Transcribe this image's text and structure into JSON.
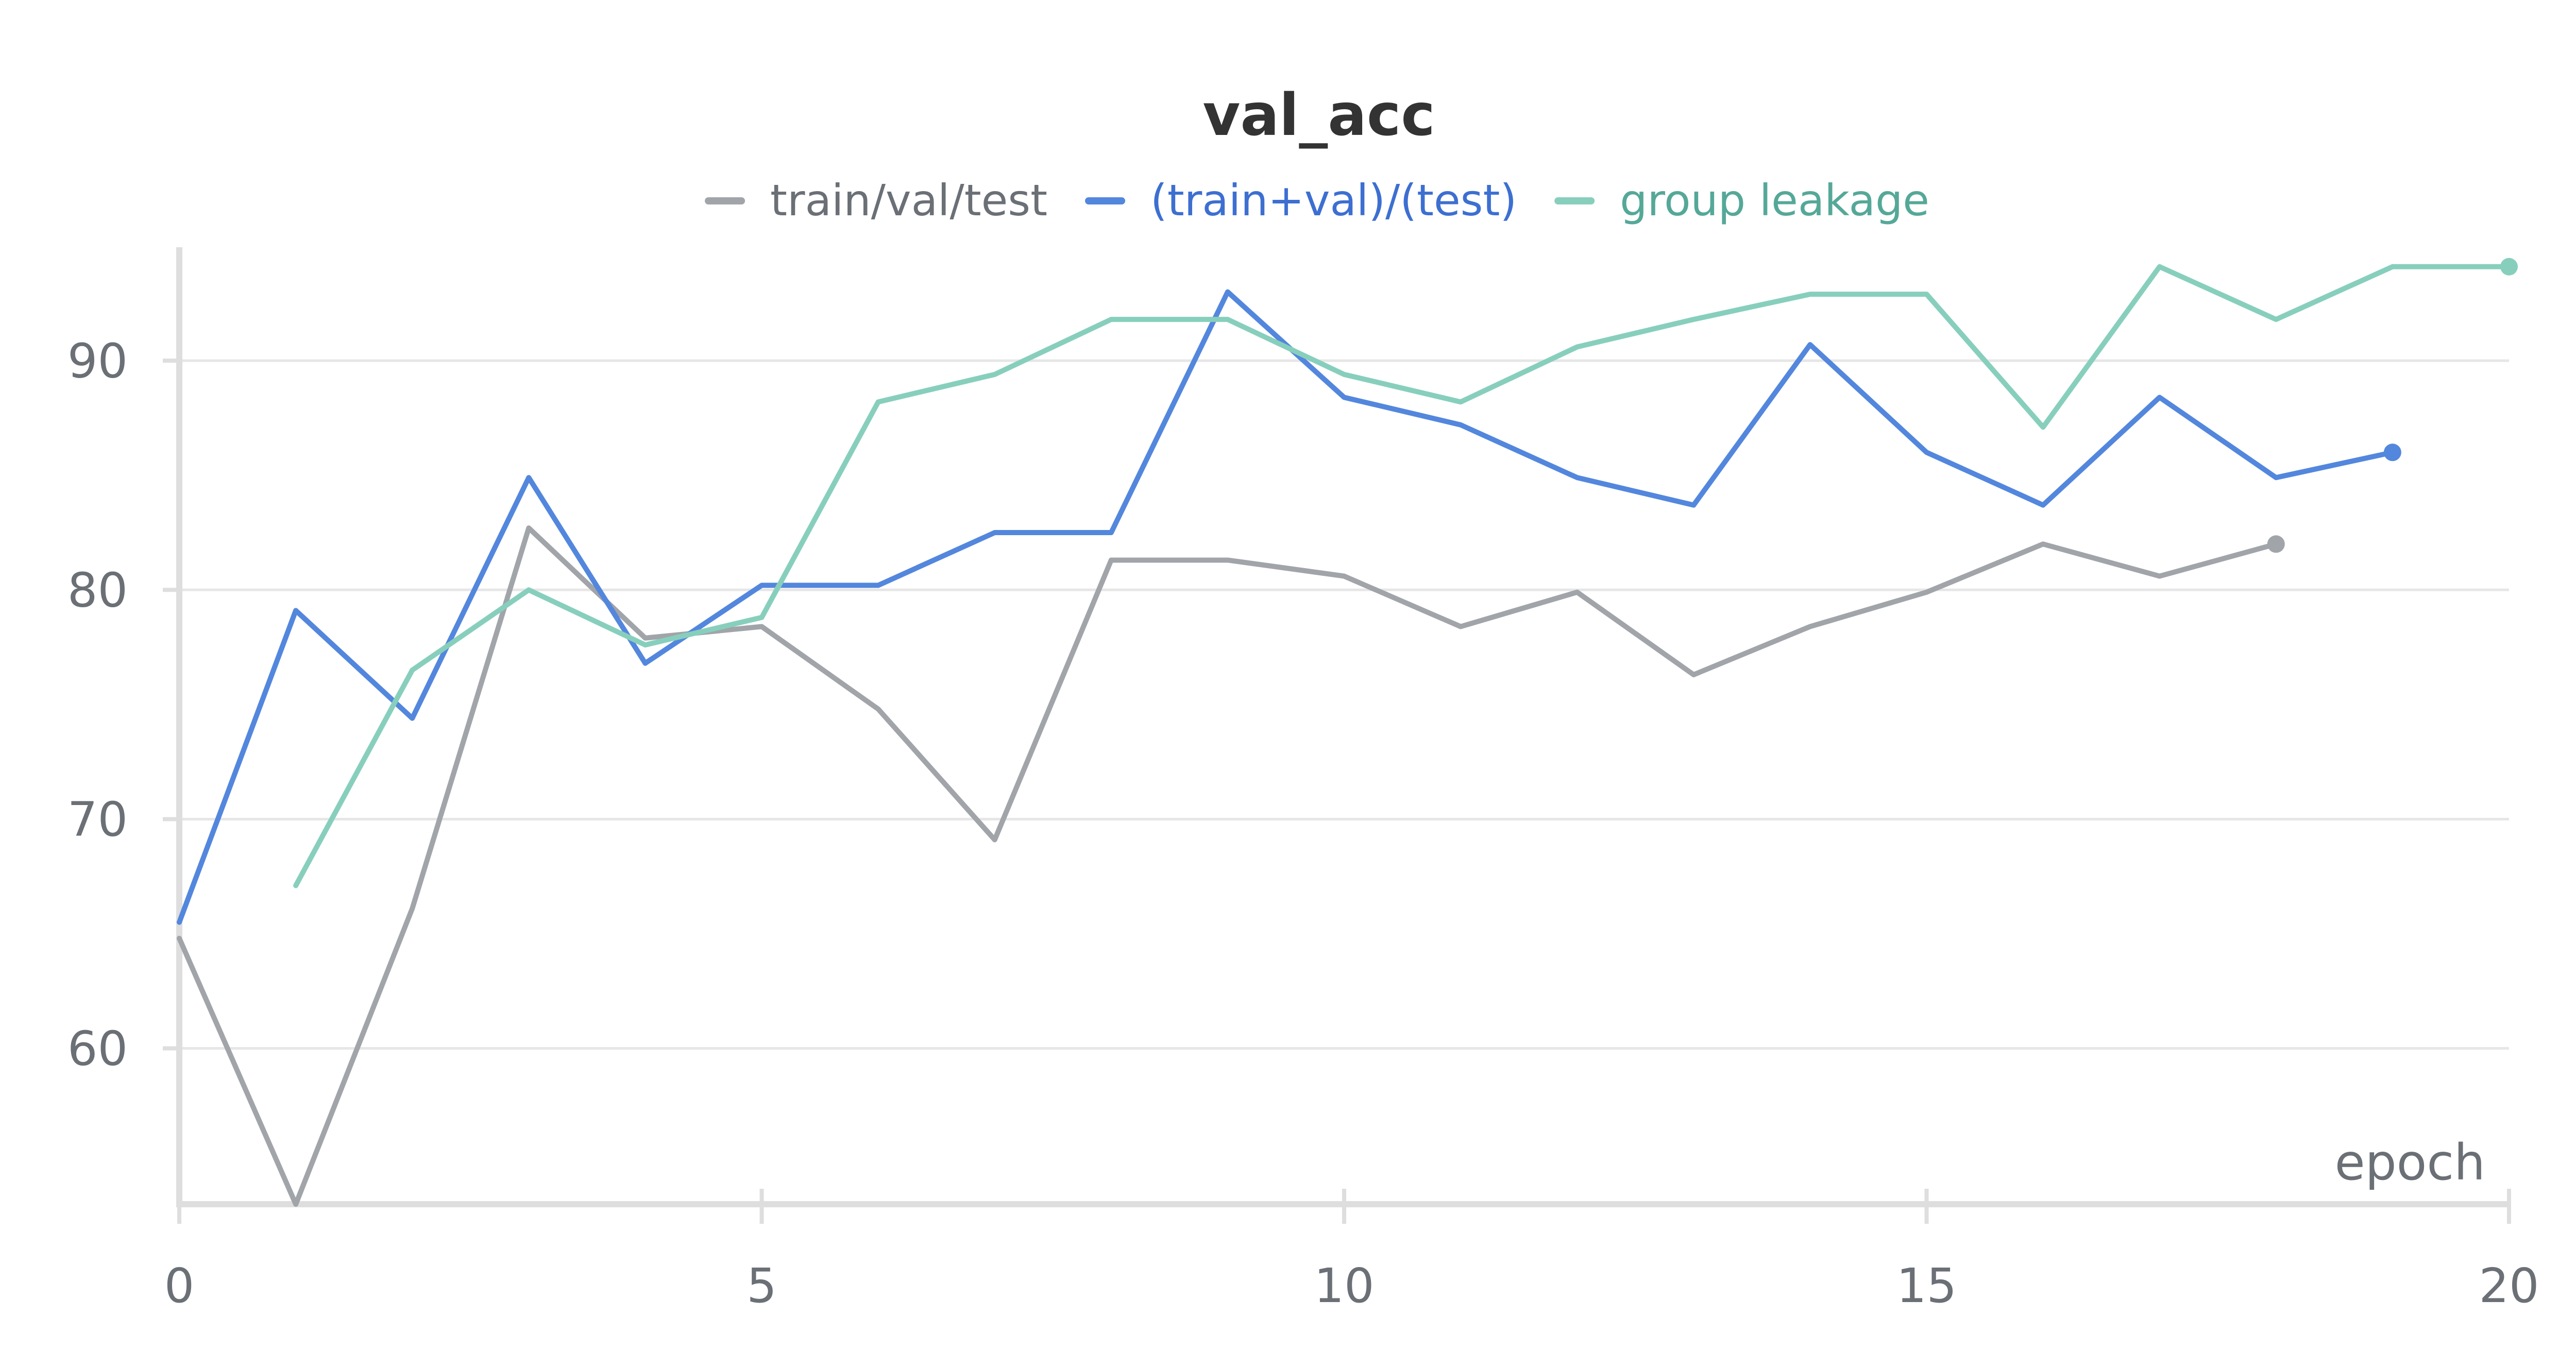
{
  "chart_data": {
    "type": "line",
    "title": "val_acc",
    "xlabel": "epoch",
    "ylabel": "",
    "xlim": [
      0,
      20
    ],
    "ylim": [
      53.2,
      94.5
    ],
    "xticks": [
      0,
      5,
      10,
      15,
      20
    ],
    "yticks": [
      60,
      70,
      80,
      90
    ],
    "grid": true,
    "legend_position": "top-center",
    "series": [
      {
        "name": "train/val/test",
        "color": "#a1a4a9",
        "text_color": "#6b6f76",
        "x": [
          0,
          1,
          2,
          3,
          4,
          5,
          6,
          7,
          8,
          9,
          10,
          11,
          12,
          13,
          14,
          15,
          16,
          17,
          18
        ],
        "values": [
          64.8,
          53.2,
          66.1,
          82.7,
          77.9,
          78.4,
          74.8,
          69.1,
          81.3,
          81.3,
          80.6,
          78.4,
          79.9,
          76.3,
          78.4,
          79.9,
          82.0,
          80.6,
          82.0
        ]
      },
      {
        "name": "(train+val)/(test)",
        "color": "#5387dd",
        "text_color": "#3d6fd1",
        "x": [
          0,
          1,
          2,
          3,
          4,
          5,
          6,
          7,
          8,
          9,
          10,
          11,
          12,
          13,
          14,
          15,
          16,
          17,
          18,
          19
        ],
        "values": [
          65.5,
          79.1,
          74.4,
          84.9,
          76.8,
          80.2,
          80.2,
          82.5,
          82.5,
          93.0,
          88.4,
          87.2,
          84.9,
          83.7,
          90.7,
          86.0,
          83.7,
          88.4,
          84.9,
          86.0
        ]
      },
      {
        "name": "group leakage",
        "color": "#87cfbc",
        "text_color": "#55a898",
        "x": [
          1,
          2,
          3,
          4,
          5,
          6,
          7,
          8,
          9,
          10,
          11,
          12,
          13,
          14,
          15,
          16,
          17,
          18,
          19,
          20
        ],
        "values": [
          67.1,
          76.5,
          80.0,
          77.6,
          78.8,
          88.2,
          89.4,
          91.8,
          91.8,
          89.4,
          88.2,
          90.6,
          91.8,
          92.9,
          92.9,
          87.1,
          94.1,
          91.8,
          94.1,
          94.1
        ]
      }
    ]
  }
}
